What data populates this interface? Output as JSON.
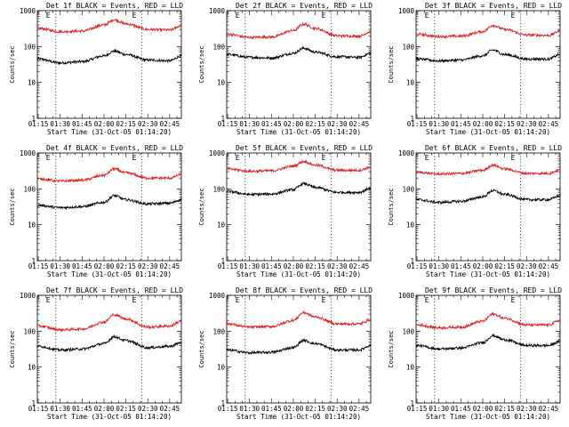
{
  "chart_data": [
    {
      "type": "line",
      "title": "Det 1f BLACK = Events, RED = LLD",
      "xlabel": "Start Time (31-Oct-05 01:14:20)",
      "ylabel": "Counts/sec",
      "xticks": [
        "01:15",
        "01:30",
        "01:45",
        "02:00",
        "02:15",
        "02:30",
        "02:45"
      ],
      "yticks": [
        "1",
        "10",
        "100",
        "1000"
      ],
      "ylog": true,
      "ylim": [
        1,
        1000
      ],
      "xlim": [
        "01:14:20",
        "02:53:00"
      ],
      "markers": [
        {
          "label": "E",
          "time": "01:27"
        },
        {
          "label": "E",
          "time": "02:26"
        }
      ],
      "series": [
        {
          "color": "#000000",
          "x": [
            "01:15",
            "01:30",
            "01:45",
            "02:00",
            "02:07",
            "02:15",
            "02:30",
            "02:45",
            "02:53"
          ],
          "values": [
            45,
            35,
            38,
            55,
            75,
            60,
            42,
            40,
            55
          ]
        },
        {
          "color": "#e02020",
          "x": [
            "01:15",
            "01:30",
            "01:45",
            "02:00",
            "02:07",
            "02:15",
            "02:30",
            "02:45",
            "02:53"
          ],
          "values": [
            320,
            260,
            270,
            400,
            560,
            430,
            300,
            290,
            380
          ]
        }
      ]
    },
    {
      "type": "line",
      "title": "Det 2f BLACK = Events, RED = LLD",
      "xlabel": "Start Time (31-Oct-05 01:14:20)",
      "ylabel": "Counts/sec",
      "xticks": [
        "01:15",
        "01:30",
        "01:45",
        "02:00",
        "02:15",
        "02:30",
        "02:45"
      ],
      "yticks": [
        "1",
        "10",
        "100",
        "1000"
      ],
      "ylog": true,
      "ylim": [
        1,
        1000
      ],
      "xlim": [
        "01:14:20",
        "02:53:00"
      ],
      "markers": [
        {
          "label": "E",
          "time": "01:27"
        },
        {
          "label": "E",
          "time": "02:26"
        }
      ],
      "series": [
        {
          "color": "#000000",
          "x": [
            "01:15",
            "01:30",
            "01:45",
            "02:00",
            "02:07",
            "02:15",
            "02:30",
            "02:45",
            "02:53"
          ],
          "values": [
            60,
            50,
            48,
            65,
            90,
            70,
            52,
            50,
            65
          ]
        },
        {
          "color": "#e02020",
          "x": [
            "01:15",
            "01:30",
            "01:45",
            "02:00",
            "02:07",
            "02:15",
            "02:30",
            "02:45",
            "02:53"
          ],
          "values": [
            220,
            180,
            185,
            280,
            420,
            320,
            200,
            195,
            260
          ]
        }
      ]
    },
    {
      "type": "line",
      "title": "Det 3f BLACK = Events, RED = LLD",
      "xlabel": "Start Time (31-Oct-05 01:14:20)",
      "ylabel": "Counts/sec",
      "xticks": [
        "01:15",
        "01:30",
        "01:45",
        "02:00",
        "02:15",
        "02:30",
        "02:45"
      ],
      "yticks": [
        "1",
        "10",
        "100",
        "1000"
      ],
      "ylog": true,
      "ylim": [
        1,
        1000
      ],
      "xlim": [
        "01:14:20",
        "02:53:00"
      ],
      "markers": [
        {
          "label": "E",
          "time": "01:27"
        },
        {
          "label": "E",
          "time": "02:26"
        }
      ],
      "series": [
        {
          "color": "#000000",
          "x": [
            "01:15",
            "01:30",
            "01:45",
            "02:00",
            "02:07",
            "02:15",
            "02:30",
            "02:45",
            "02:53"
          ],
          "values": [
            45,
            40,
            42,
            55,
            80,
            60,
            45,
            45,
            60
          ]
        },
        {
          "color": "#e02020",
          "x": [
            "01:15",
            "01:30",
            "01:45",
            "02:00",
            "02:07",
            "02:15",
            "02:30",
            "02:45",
            "02:53"
          ],
          "values": [
            220,
            190,
            195,
            260,
            390,
            300,
            210,
            205,
            270
          ]
        }
      ]
    },
    {
      "type": "line",
      "title": "Det 4f BLACK = Events, RED = LLD",
      "xlabel": "Start Time (31-Oct-05 01:14:20)",
      "ylabel": "Counts/sec",
      "xticks": [
        "01:15",
        "01:30",
        "01:45",
        "02:00",
        "02:15",
        "02:30",
        "02:45"
      ],
      "yticks": [
        "1",
        "10",
        "100",
        "1000"
      ],
      "ylog": true,
      "ylim": [
        1,
        1000
      ],
      "xlim": [
        "01:14:20",
        "02:53:00"
      ],
      "markers": [
        {
          "label": "E",
          "time": "01:27"
        },
        {
          "label": "E",
          "time": "02:26"
        }
      ],
      "series": [
        {
          "color": "#000000",
          "x": [
            "01:15",
            "01:30",
            "01:45",
            "02:00",
            "02:07",
            "02:15",
            "02:30",
            "02:45",
            "02:53"
          ],
          "values": [
            35,
            30,
            32,
            42,
            65,
            50,
            38,
            40,
            50
          ]
        },
        {
          "color": "#e02020",
          "x": [
            "01:15",
            "01:30",
            "01:45",
            "02:00",
            "02:07",
            "02:15",
            "02:30",
            "02:45",
            "02:53"
          ],
          "values": [
            190,
            165,
            175,
            240,
            360,
            280,
            200,
            200,
            250
          ]
        }
      ]
    },
    {
      "type": "line",
      "title": "Det 5f BLACK = Events, RED = LLD",
      "xlabel": "Start Time (31-Oct-05 01:14:20)",
      "ylabel": "Counts/sec",
      "xticks": [
        "01:15",
        "01:30",
        "01:45",
        "02:00",
        "02:15",
        "02:30",
        "02:45"
      ],
      "yticks": [
        "1",
        "10",
        "100",
        "1000"
      ],
      "ylog": true,
      "ylim": [
        1,
        1000
      ],
      "xlim": [
        "01:14:20",
        "02:53:00"
      ],
      "markers": [
        {
          "label": "E",
          "time": "01:27"
        },
        {
          "label": "E",
          "time": "02:26"
        }
      ],
      "series": [
        {
          "color": "#000000",
          "x": [
            "01:15",
            "01:30",
            "01:45",
            "02:00",
            "02:07",
            "02:15",
            "02:30",
            "02:45",
            "02:53"
          ],
          "values": [
            85,
            70,
            72,
            95,
            140,
            110,
            80,
            80,
            105
          ]
        },
        {
          "color": "#e02020",
          "x": [
            "01:15",
            "01:30",
            "01:45",
            "02:00",
            "02:07",
            "02:15",
            "02:30",
            "02:45",
            "02:53"
          ],
          "values": [
            360,
            310,
            320,
            430,
            580,
            460,
            330,
            330,
            400
          ]
        }
      ]
    },
    {
      "type": "line",
      "title": "Det 6f BLACK = Events, RED = LLD",
      "xlabel": "Start Time (31-Oct-05 01:14:20)",
      "ylabel": "Counts/sec",
      "xticks": [
        "01:15",
        "01:30",
        "01:45",
        "02:00",
        "02:15",
        "02:30",
        "02:45"
      ],
      "yticks": [
        "1",
        "10",
        "100",
        "1000"
      ],
      "ylog": true,
      "ylim": [
        1,
        1000
      ],
      "xlim": [
        "01:14:20",
        "02:53:00"
      ],
      "markers": [
        {
          "label": "E",
          "time": "01:27"
        },
        {
          "label": "E",
          "time": "02:26"
        }
      ],
      "series": [
        {
          "color": "#000000",
          "x": [
            "01:15",
            "01:30",
            "01:45",
            "02:00",
            "02:07",
            "02:15",
            "02:30",
            "02:45",
            "02:53"
          ],
          "values": [
            50,
            42,
            45,
            60,
            90,
            70,
            50,
            50,
            65
          ]
        },
        {
          "color": "#e02020",
          "x": [
            "01:15",
            "01:30",
            "01:45",
            "02:00",
            "02:07",
            "02:15",
            "02:30",
            "02:45",
            "02:53"
          ],
          "values": [
            290,
            260,
            270,
            330,
            460,
            360,
            270,
            270,
            340
          ]
        }
      ]
    },
    {
      "type": "line",
      "title": "Det 7f BLACK = Events, RED = LLD",
      "xlabel": "Start Time (31-Oct-05 01:14:20)",
      "ylabel": "Counts/sec",
      "xticks": [
        "01:15",
        "01:30",
        "01:45",
        "02:00",
        "02:15",
        "02:30",
        "02:45"
      ],
      "yticks": [
        "1",
        "10",
        "100",
        "1000"
      ],
      "ylog": true,
      "ylim": [
        1,
        1000
      ],
      "xlim": [
        "01:14:20",
        "02:53:00"
      ],
      "markers": [
        {
          "label": "E",
          "time": "01:27"
        },
        {
          "label": "E",
          "time": "02:26"
        }
      ],
      "series": [
        {
          "color": "#000000",
          "x": [
            "01:15",
            "01:30",
            "01:45",
            "02:00",
            "02:07",
            "02:15",
            "02:30",
            "02:45",
            "02:53"
          ],
          "values": [
            38,
            30,
            32,
            45,
            70,
            55,
            35,
            38,
            48
          ]
        },
        {
          "color": "#e02020",
          "x": [
            "01:15",
            "01:30",
            "01:45",
            "02:00",
            "02:07",
            "02:15",
            "02:30",
            "02:45",
            "02:53"
          ],
          "values": [
            140,
            110,
            115,
            180,
            290,
            220,
            130,
            140,
            190
          ]
        }
      ]
    },
    {
      "type": "line",
      "title": "Det 8f BLACK = Events, RED = LLD",
      "xlabel": "Start Time (31-Oct-05 01:14:20)",
      "ylabel": "Counts/sec",
      "xticks": [
        "01:15",
        "01:30",
        "01:45",
        "02:00",
        "02:15",
        "02:30",
        "02:45"
      ],
      "yticks": [
        "1",
        "10",
        "100",
        "1000"
      ],
      "ylog": true,
      "ylim": [
        1,
        1000
      ],
      "xlim": [
        "01:14:20",
        "02:53:00"
      ],
      "markers": [
        {
          "label": "E",
          "time": "01:27"
        },
        {
          "label": "E",
          "time": "02:26"
        }
      ],
      "series": [
        {
          "color": "#000000",
          "x": [
            "01:15",
            "01:30",
            "01:45",
            "02:00",
            "02:07",
            "02:15",
            "02:30",
            "02:45",
            "02:53"
          ],
          "values": [
            30,
            25,
            26,
            35,
            55,
            45,
            30,
            30,
            40
          ]
        },
        {
          "color": "#e02020",
          "x": [
            "01:15",
            "01:30",
            "01:45",
            "02:00",
            "02:07",
            "02:15",
            "02:30",
            "02:45",
            "02:53"
          ],
          "values": [
            160,
            130,
            135,
            200,
            330,
            250,
            160,
            160,
            210
          ]
        }
      ]
    },
    {
      "type": "line",
      "title": "Det 9f BLACK = Events, RED = LLD",
      "xlabel": "Start Time (31-Oct-05 01:14:20)",
      "ylabel": "Counts/sec",
      "xticks": [
        "01:15",
        "01:30",
        "01:45",
        "02:00",
        "02:15",
        "02:30",
        "02:45"
      ],
      "yticks": [
        "1",
        "10",
        "100",
        "1000"
      ],
      "ylog": true,
      "ylim": [
        1,
        1000
      ],
      "xlim": [
        "01:14:20",
        "02:53:00"
      ],
      "markers": [
        {
          "label": "E",
          "time": "01:27"
        },
        {
          "label": "E",
          "time": "02:26"
        }
      ],
      "series": [
        {
          "color": "#000000",
          "x": [
            "01:15",
            "01:30",
            "01:45",
            "02:00",
            "02:07",
            "02:15",
            "02:30",
            "02:45",
            "02:53"
          ],
          "values": [
            40,
            32,
            34,
            48,
            75,
            58,
            40,
            40,
            52
          ]
        },
        {
          "color": "#e02020",
          "x": [
            "01:15",
            "01:30",
            "01:45",
            "02:00",
            "02:07",
            "02:15",
            "02:30",
            "02:45",
            "02:53"
          ],
          "values": [
            150,
            125,
            130,
            190,
            300,
            230,
            150,
            150,
            200
          ]
        }
      ]
    }
  ]
}
